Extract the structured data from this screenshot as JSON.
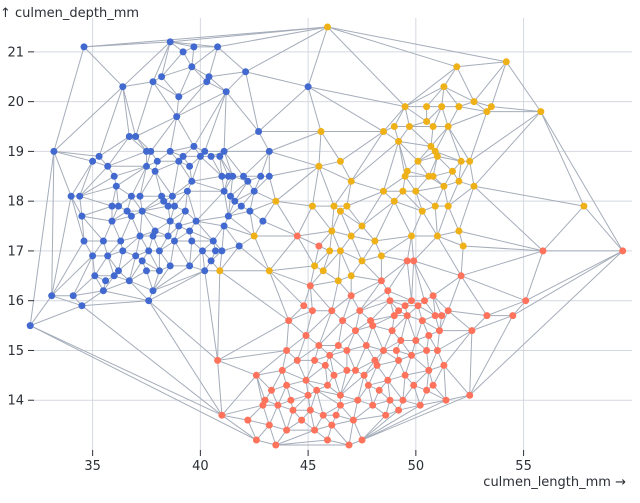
{
  "chart_data": {
    "type": "scatter",
    "xlabel": "culmen_length_mm →",
    "ylabel": "↑ culmen_depth_mm",
    "xlim": [
      32.0,
      59.8
    ],
    "ylim": [
      13.0,
      21.6
    ],
    "x_ticks": [
      35,
      40,
      45,
      50,
      55
    ],
    "y_ticks": [
      14,
      15,
      16,
      17,
      18,
      19,
      20,
      21
    ],
    "grid": true,
    "overlay": "delaunay-mesh",
    "colors": {
      "cluster_a": "#4269d0",
      "cluster_b": "#efb118",
      "cluster_c": "#ff725c",
      "mesh": "#a5adba"
    },
    "series": [
      {
        "color": "#4269d0",
        "points": [
          [
            34.6,
            21.1
          ],
          [
            38.6,
            21.2
          ],
          [
            39.7,
            21.1
          ],
          [
            40.8,
            21.1
          ],
          [
            36.7,
            19.3
          ],
          [
            39.2,
            21.0
          ],
          [
            36.4,
            20.3
          ],
          [
            37.8,
            20.4
          ],
          [
            38.2,
            20.5
          ],
          [
            40.3,
            20.4
          ],
          [
            41.2,
            20.2
          ],
          [
            40.4,
            20.5
          ],
          [
            42.1,
            20.6
          ],
          [
            45.0,
            20.3
          ],
          [
            38.9,
            19.7
          ],
          [
            39.0,
            20.1
          ],
          [
            39.6,
            20.7
          ],
          [
            33.2,
            19.0
          ],
          [
            35.0,
            18.8
          ],
          [
            35.7,
            18.7
          ],
          [
            36.8,
            18.1
          ],
          [
            37.0,
            19.3
          ],
          [
            37.5,
            18.7
          ],
          [
            37.7,
            19.0
          ],
          [
            37.9,
            18.6
          ],
          [
            38.0,
            18.8
          ],
          [
            38.2,
            18.1
          ],
          [
            38.5,
            17.9
          ],
          [
            38.7,
            18.1
          ],
          [
            38.6,
            19.0
          ],
          [
            39.0,
            18.8
          ],
          [
            39.2,
            18.9
          ],
          [
            39.5,
            18.7
          ],
          [
            39.6,
            18.4
          ],
          [
            39.7,
            19.1
          ],
          [
            40.0,
            18.9
          ],
          [
            40.2,
            19.0
          ],
          [
            40.5,
            18.9
          ],
          [
            40.9,
            18.9
          ],
          [
            41.0,
            18.5
          ],
          [
            41.1,
            18.2
          ],
          [
            41.3,
            18.5
          ],
          [
            41.5,
            18.5
          ],
          [
            41.4,
            18.1
          ],
          [
            41.6,
            18.0
          ],
          [
            42.0,
            18.5
          ],
          [
            42.2,
            18.4
          ],
          [
            42.5,
            18.2
          ],
          [
            42.8,
            18.5
          ],
          [
            42.9,
            17.6
          ],
          [
            43.2,
            18.5
          ],
          [
            43.2,
            19.0
          ],
          [
            42.7,
            19.4
          ],
          [
            41.1,
            19.0
          ],
          [
            34.0,
            18.1
          ],
          [
            34.4,
            18.1
          ],
          [
            34.5,
            17.7
          ],
          [
            35.3,
            18.9
          ],
          [
            35.5,
            17.2
          ],
          [
            35.9,
            17.6
          ],
          [
            36.0,
            18.5
          ],
          [
            36.2,
            17.9
          ],
          [
            36.3,
            17.2
          ],
          [
            36.6,
            17.8
          ],
          [
            36.8,
            17.7
          ],
          [
            37.0,
            16.9
          ],
          [
            37.2,
            18.1
          ],
          [
            37.3,
            17.8
          ],
          [
            37.6,
            17.0
          ],
          [
            37.8,
            17.3
          ],
          [
            37.9,
            17.4
          ],
          [
            38.1,
            17.0
          ],
          [
            38.3,
            18.0
          ],
          [
            38.5,
            17.3
          ],
          [
            38.8,
            17.2
          ],
          [
            39.0,
            17.5
          ],
          [
            39.3,
            17.8
          ],
          [
            39.5,
            17.4
          ],
          [
            39.6,
            17.2
          ],
          [
            39.8,
            17.6
          ],
          [
            40.1,
            17.0
          ],
          [
            40.6,
            17.2
          ],
          [
            40.7,
            17.0
          ],
          [
            41.0,
            17.0
          ],
          [
            41.1,
            17.5
          ],
          [
            41.3,
            17.7
          ],
          [
            41.8,
            17.1
          ],
          [
            42.3,
            17.8
          ],
          [
            34.1,
            16.1
          ],
          [
            34.6,
            17.2
          ],
          [
            35.0,
            16.9
          ],
          [
            35.6,
            16.4
          ],
          [
            35.7,
            16.9
          ],
          [
            36.0,
            16.5
          ],
          [
            36.2,
            16.6
          ],
          [
            36.7,
            16.4
          ],
          [
            37.3,
            16.8
          ],
          [
            37.5,
            16.6
          ],
          [
            37.8,
            16.2
          ],
          [
            38.1,
            16.6
          ],
          [
            38.6,
            16.7
          ],
          [
            39.5,
            16.7
          ],
          [
            40.2,
            16.6
          ],
          [
            40.5,
            16.8
          ],
          [
            35.5,
            16.2
          ],
          [
            34.5,
            15.9
          ],
          [
            37.6,
            16.0
          ],
          [
            33.1,
            16.1
          ],
          [
            32.1,
            15.5
          ],
          [
            35.1,
            16.5
          ],
          [
            36.4,
            17.0
          ],
          [
            37.2,
            17.3
          ],
          [
            38.6,
            17.6
          ],
          [
            39.4,
            18.2
          ],
          [
            35.9,
            17.9
          ],
          [
            37.5,
            19.0
          ],
          [
            36.1,
            18.3
          ],
          [
            38.8,
            17.9
          ],
          [
            41.9,
            17.9
          ]
        ]
      },
      {
        "color": "#efb118",
        "points": [
          [
            45.9,
            21.5
          ],
          [
            51.9,
            20.7
          ],
          [
            54.2,
            20.8
          ],
          [
            51.3,
            20.3
          ],
          [
            52.7,
            20.0
          ],
          [
            53.5,
            19.9
          ],
          [
            49.5,
            19.9
          ],
          [
            50.5,
            19.9
          ],
          [
            51.2,
            19.9
          ],
          [
            52.0,
            19.9
          ],
          [
            49.0,
            19.5
          ],
          [
            49.7,
            19.5
          ],
          [
            50.5,
            19.6
          ],
          [
            50.8,
            19.5
          ],
          [
            51.5,
            19.5
          ],
          [
            53.3,
            19.8
          ],
          [
            55.8,
            19.8
          ],
          [
            45.6,
            19.4
          ],
          [
            48.5,
            19.4
          ],
          [
            49.2,
            19.2
          ],
          [
            50.7,
            19.1
          ],
          [
            50.9,
            19.0
          ],
          [
            50.1,
            18.8
          ],
          [
            51.0,
            18.9
          ],
          [
            52.1,
            18.8
          ],
          [
            52.5,
            18.8
          ],
          [
            49.6,
            18.6
          ],
          [
            50.6,
            18.5
          ],
          [
            51.7,
            18.6
          ],
          [
            45.5,
            18.7
          ],
          [
            46.5,
            18.8
          ],
          [
            47.0,
            18.4
          ],
          [
            48.5,
            18.2
          ],
          [
            49.5,
            18.5
          ],
          [
            50.0,
            18.2
          ],
          [
            50.8,
            18.5
          ],
          [
            51.3,
            18.3
          ],
          [
            52.0,
            18.4
          ],
          [
            52.7,
            18.3
          ],
          [
            43.5,
            18.0
          ],
          [
            45.2,
            17.9
          ],
          [
            46.2,
            17.9
          ],
          [
            46.5,
            17.8
          ],
          [
            46.8,
            17.9
          ],
          [
            47.5,
            17.5
          ],
          [
            48.1,
            17.2
          ],
          [
            49.4,
            18.2
          ],
          [
            50.9,
            17.9
          ],
          [
            51.5,
            17.9
          ],
          [
            57.8,
            17.9
          ],
          [
            42.5,
            17.3
          ],
          [
            46.1,
            17.4
          ],
          [
            47.0,
            17.3
          ],
          [
            46.0,
            17.0
          ],
          [
            46.5,
            17.0
          ],
          [
            48.4,
            16.9
          ],
          [
            49.8,
            17.3
          ],
          [
            51.0,
            17.3
          ],
          [
            52.2,
            17.1
          ],
          [
            45.3,
            16.7
          ],
          [
            45.7,
            16.6
          ],
          [
            47.0,
            16.5
          ],
          [
            47.5,
            16.8
          ],
          [
            40.9,
            16.6
          ],
          [
            43.2,
            16.6
          ],
          [
            46.4,
            16.4
          ],
          [
            52.0,
            17.4
          ],
          [
            50.3,
            17.8
          ],
          [
            49.0,
            18.0
          ]
        ]
      },
      {
        "color": "#ff725c",
        "points": [
          [
            59.6,
            17.0
          ],
          [
            55.9,
            17.0
          ],
          [
            44.5,
            17.3
          ],
          [
            45.5,
            17.1
          ],
          [
            49.6,
            16.8
          ],
          [
            49.9,
            16.8
          ],
          [
            52.1,
            16.5
          ],
          [
            55.1,
            16.0
          ],
          [
            48.4,
            16.4
          ],
          [
            48.7,
            16.2
          ],
          [
            45.1,
            16.3
          ],
          [
            47.0,
            16.1
          ],
          [
            48.8,
            16.0
          ],
          [
            49.2,
            15.8
          ],
          [
            49.5,
            15.9
          ],
          [
            49.8,
            16.0
          ],
          [
            50.1,
            15.9
          ],
          [
            50.4,
            16.0
          ],
          [
            50.8,
            16.1
          ],
          [
            51.2,
            15.7
          ],
          [
            49.0,
            15.7
          ],
          [
            49.6,
            15.7
          ],
          [
            50.3,
            15.6
          ],
          [
            50.9,
            15.7
          ],
          [
            51.5,
            15.8
          ],
          [
            53.3,
            15.7
          ],
          [
            54.5,
            15.7
          ],
          [
            45.2,
            15.8
          ],
          [
            46.1,
            15.8
          ],
          [
            47.2,
            15.4
          ],
          [
            48.0,
            15.5
          ],
          [
            49.3,
            15.2
          ],
          [
            50.0,
            15.2
          ],
          [
            50.6,
            15.3
          ],
          [
            51.1,
            15.4
          ],
          [
            52.6,
            15.4
          ],
          [
            44.1,
            15.6
          ],
          [
            44.9,
            15.3
          ],
          [
            46.4,
            15.1
          ],
          [
            46.8,
            15.0
          ],
          [
            47.7,
            15.1
          ],
          [
            48.5,
            15.0
          ],
          [
            49.1,
            15.0
          ],
          [
            49.8,
            14.9
          ],
          [
            50.5,
            15.0
          ],
          [
            51.0,
            15.0
          ],
          [
            44.5,
            14.8
          ],
          [
            45.3,
            14.8
          ],
          [
            45.8,
            14.7
          ],
          [
            46.2,
            14.5
          ],
          [
            46.8,
            14.6
          ],
          [
            47.6,
            14.5
          ],
          [
            48.2,
            14.7
          ],
          [
            48.7,
            14.4
          ],
          [
            49.2,
            14.8
          ],
          [
            49.9,
            14.3
          ],
          [
            50.6,
            14.6
          ],
          [
            51.3,
            14.7
          ],
          [
            43.3,
            14.2
          ],
          [
            44.0,
            14.3
          ],
          [
            44.9,
            14.4
          ],
          [
            45.4,
            14.2
          ],
          [
            45.9,
            14.3
          ],
          [
            46.5,
            14.1
          ],
          [
            47.3,
            14.0
          ],
          [
            47.8,
            14.3
          ],
          [
            48.3,
            14.2
          ],
          [
            48.8,
            14.0
          ],
          [
            49.4,
            14.0
          ],
          [
            50.5,
            14.2
          ],
          [
            51.4,
            14.0
          ],
          [
            42.9,
            13.9
          ],
          [
            43.6,
            13.9
          ],
          [
            44.3,
            13.8
          ],
          [
            45.1,
            13.8
          ],
          [
            45.7,
            13.7
          ],
          [
            46.3,
            13.7
          ],
          [
            47.1,
            13.6
          ],
          [
            48.0,
            13.9
          ],
          [
            48.6,
            13.7
          ],
          [
            49.2,
            13.8
          ],
          [
            50.2,
            13.9
          ],
          [
            52.5,
            14.1
          ],
          [
            42.2,
            13.6
          ],
          [
            43.2,
            13.5
          ],
          [
            44.7,
            13.6
          ],
          [
            45.3,
            13.4
          ],
          [
            46.1,
            13.5
          ],
          [
            47.5,
            13.2
          ],
          [
            42.6,
            13.2
          ],
          [
            44.0,
            13.4
          ],
          [
            46.9,
            13.1
          ],
          [
            43.5,
            13.1
          ],
          [
            41.0,
            13.7
          ],
          [
            45.9,
            13.2
          ],
          [
            47.2,
            14.6
          ],
          [
            44.8,
            15.9
          ],
          [
            46.6,
            15.6
          ],
          [
            47.4,
            15.8
          ],
          [
            48.1,
            14.8
          ],
          [
            45.5,
            15.1
          ],
          [
            43.8,
            14.6
          ],
          [
            46.0,
            14.9
          ],
          [
            44.2,
            14.0
          ],
          [
            42.6,
            14.5
          ],
          [
            40.8,
            14.8
          ],
          [
            47.9,
            15.6
          ],
          [
            46.5,
            13.9
          ],
          [
            48.9,
            15.4
          ],
          [
            45.0,
            14.1
          ],
          [
            44.0,
            15.0
          ],
          [
            43.0,
            14.0
          ],
          [
            49.5,
            14.5
          ],
          [
            50.8,
            14.3
          ]
        ]
      }
    ]
  }
}
